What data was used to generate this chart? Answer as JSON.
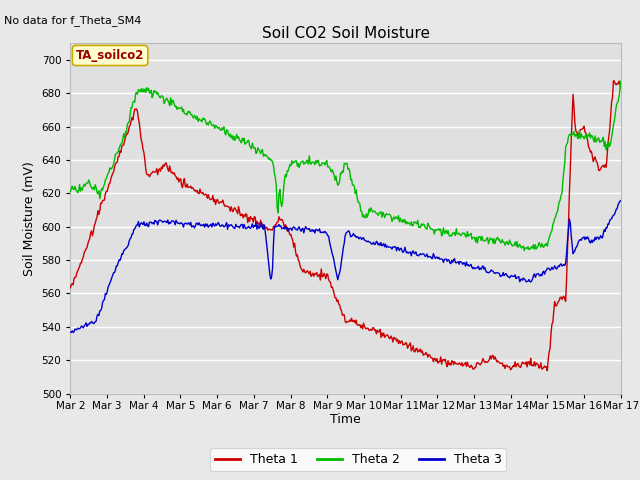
{
  "title": "Soil CO2 Soil Moisture",
  "ylabel": "Soil Moisture (mV)",
  "xlabel": "Time",
  "no_data_text": "No data for f_Theta_SM4",
  "annotation_text": "TA_soilco2",
  "ylim": [
    500,
    710
  ],
  "yticks": [
    500,
    520,
    540,
    560,
    580,
    600,
    620,
    640,
    660,
    680,
    700
  ],
  "x_labels": [
    "Mar 2",
    "Mar 3",
    "Mar 4",
    "Mar 5",
    "Mar 6",
    "Mar 7",
    "Mar 8",
    "Mar 9",
    "Mar 10",
    "Mar 11",
    "Mar 12",
    "Mar 13",
    "Mar 14",
    "Mar 15",
    "Mar 16",
    "Mar 17"
  ],
  "bg_color": "#e8e8e8",
  "plot_bg_color": "#e0e0e0",
  "grid_color": "#ffffff",
  "line_colors": {
    "theta1": "#cc0000",
    "theta2": "#00bb00",
    "theta3": "#0000cc"
  },
  "legend_labels": [
    "Theta 1",
    "Theta 2",
    "Theta 3"
  ],
  "annotation_bg": "#ffffcc",
  "annotation_fg": "#990000",
  "annotation_border": "#ccaa00"
}
